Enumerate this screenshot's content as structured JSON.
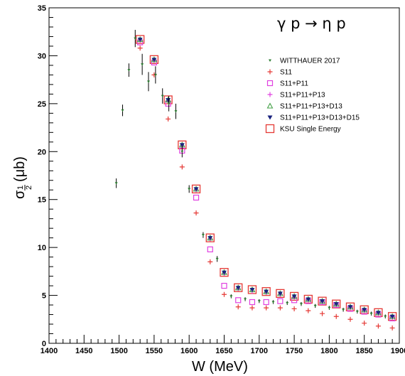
{
  "chart_data": {
    "type": "scatter",
    "title": "γ p → η p",
    "xlabel": "W (MeV)",
    "ylabel": "σ½ (μb)",
    "ylabel_main": "σ",
    "ylabel_sub_num": "1",
    "ylabel_sub_den": "2",
    "ylabel_unit": "(μb)",
    "xlim": [
      1400,
      1900
    ],
    "ylim": [
      0,
      35
    ],
    "x_ticks": [
      "1400",
      "1450",
      "1500",
      "1550",
      "1600",
      "1650",
      "1700",
      "1750",
      "1800",
      "1850",
      "1900"
    ],
    "y_ticks": [
      "0",
      "5",
      "10",
      "15",
      "20",
      "25",
      "30",
      "35"
    ],
    "grid": false,
    "legend_position": "top-right",
    "series": [
      {
        "name": "WITTHAUER 2017",
        "color": "#2e7d32",
        "marker": "triangle-down-small",
        "x": [
          1496,
          1505,
          1514,
          1523,
          1533,
          1542,
          1552,
          1562,
          1571,
          1581,
          1590,
          1600,
          1620,
          1640,
          1660,
          1680,
          1700,
          1720,
          1740,
          1760,
          1780,
          1800,
          1820,
          1840,
          1860,
          1880
        ],
        "y": [
          16.7,
          24.3,
          28.5,
          31.8,
          29.1,
          27.3,
          28.0,
          25.8,
          25.0,
          24.2,
          20.0,
          16.1,
          11.3,
          8.8,
          4.9,
          4.6,
          4.4,
          4.3,
          4.2,
          4.1,
          3.9,
          3.7,
          3.5,
          3.3,
          3.1,
          2.8
        ],
        "err": [
          0.5,
          0.6,
          0.7,
          0.9,
          1.1,
          1.0,
          0.9,
          0.8,
          0.8,
          0.8,
          0.6,
          0.4,
          0.3,
          0.3,
          0.2,
          0.2,
          0.2,
          0.2,
          0.2,
          0.2,
          0.2,
          0.2,
          0.2,
          0.2,
          0.2,
          0.2
        ]
      },
      {
        "name": "S11",
        "color": "#e53935",
        "marker": "plus",
        "x": [
          1530,
          1550,
          1570,
          1590,
          1610,
          1630,
          1650,
          1670,
          1690,
          1710,
          1730,
          1750,
          1770,
          1790,
          1810,
          1830,
          1850,
          1870,
          1890
        ],
        "y": [
          30.8,
          28.0,
          23.4,
          18.4,
          13.6,
          8.5,
          5.1,
          3.8,
          3.7,
          3.7,
          3.7,
          3.6,
          3.4,
          3.1,
          2.8,
          2.5,
          2.1,
          1.8,
          1.6
        ]
      },
      {
        "name": "S11+P11",
        "color": "#e040e0",
        "marker": "open-square",
        "x": [
          1530,
          1550,
          1570,
          1590,
          1610,
          1630,
          1650,
          1670,
          1690,
          1710,
          1730,
          1750,
          1770,
          1790,
          1810,
          1830,
          1850,
          1870,
          1890
        ],
        "y": [
          31.4,
          29.3,
          25.0,
          20.1,
          15.2,
          9.8,
          6.0,
          4.5,
          4.3,
          4.3,
          4.4,
          4.5,
          4.4,
          4.3,
          4.0,
          3.6,
          3.3,
          3.0,
          2.6
        ]
      },
      {
        "name": "S11+P11+P13",
        "color": "#e040e0",
        "marker": "plus",
        "x": [
          1530,
          1550,
          1570,
          1590,
          1610,
          1630,
          1650,
          1670,
          1690,
          1710,
          1730,
          1750,
          1770,
          1790,
          1810,
          1830,
          1850,
          1870,
          1890
        ],
        "y": [
          31.6,
          29.5,
          25.3,
          20.6,
          16.0,
          10.9,
          7.3,
          5.7,
          5.4,
          5.3,
          5.1,
          4.8,
          4.5,
          4.3,
          4.0,
          3.7,
          3.4,
          3.1,
          2.7
        ]
      },
      {
        "name": "S11+P11+P13+D13",
        "color": "#43a047",
        "marker": "open-triangle",
        "x": [
          1530,
          1550,
          1570,
          1590,
          1610,
          1630,
          1650,
          1670,
          1690,
          1710,
          1730,
          1750,
          1770,
          1790,
          1810,
          1830,
          1850,
          1870,
          1890
        ],
        "y": [
          31.7,
          29.6,
          25.4,
          20.7,
          16.1,
          11.0,
          7.4,
          5.8,
          5.6,
          5.4,
          5.2,
          4.9,
          4.6,
          4.4,
          4.1,
          3.8,
          3.5,
          3.2,
          2.8
        ]
      },
      {
        "name": "S11+P11+P13+D13+D15",
        "color": "#1a237e",
        "marker": "filled-triangle-down",
        "x": [
          1530,
          1550,
          1570,
          1590,
          1610,
          1630,
          1650,
          1670,
          1690,
          1710,
          1730,
          1750,
          1770,
          1790,
          1810,
          1830,
          1850,
          1870,
          1890
        ],
        "y": [
          31.7,
          29.6,
          25.4,
          20.7,
          16.1,
          11.0,
          7.4,
          5.8,
          5.6,
          5.4,
          5.2,
          4.9,
          4.6,
          4.4,
          4.1,
          3.8,
          3.5,
          3.2,
          2.8
        ]
      },
      {
        "name": "KSU Single Energy",
        "color": "#e53935",
        "marker": "open-square-large",
        "x": [
          1530,
          1550,
          1570,
          1590,
          1610,
          1630,
          1650,
          1670,
          1690,
          1710,
          1730,
          1750,
          1770,
          1790,
          1810,
          1830,
          1850,
          1870,
          1890
        ],
        "y": [
          31.7,
          29.6,
          25.4,
          20.7,
          16.1,
          11.0,
          7.4,
          5.8,
          5.6,
          5.4,
          5.2,
          4.9,
          4.6,
          4.4,
          4.1,
          3.8,
          3.5,
          3.2,
          2.8
        ]
      }
    ]
  }
}
